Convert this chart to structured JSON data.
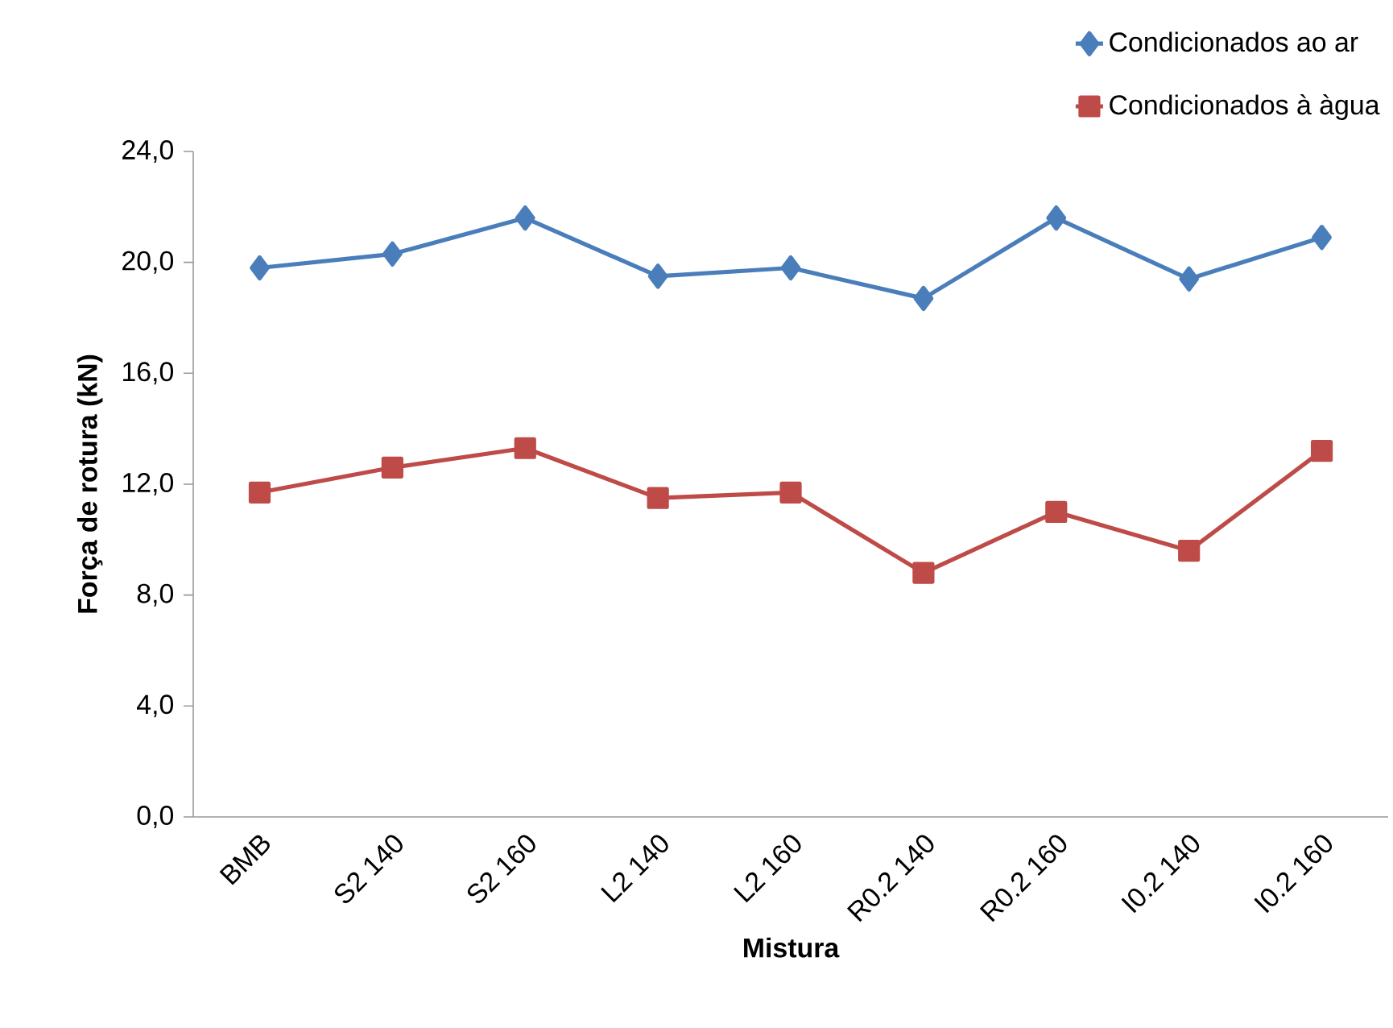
{
  "chart_data": {
    "type": "line",
    "xlabel": "Mistura",
    "ylabel": "Força de rotura (kN)",
    "categories": [
      "BMB",
      "S2 140",
      "S2 160",
      "L2 140",
      "L2 160",
      "R0.2 140",
      "R0.2 160",
      "I0.2 140",
      "I0.2 160"
    ],
    "series": [
      {
        "name": "Condicionados ao ar",
        "color": "#4a7ebb",
        "marker": "diamond",
        "values": [
          19.8,
          20.3,
          21.6,
          19.5,
          19.8,
          18.7,
          21.6,
          19.4,
          20.9
        ]
      },
      {
        "name": "Condicionados à àgua",
        "color": "#be4b48",
        "marker": "square",
        "values": [
          11.7,
          12.6,
          13.3,
          11.5,
          11.7,
          8.8,
          11.0,
          9.6,
          13.2
        ]
      }
    ],
    "ylim": [
      0,
      24
    ],
    "yticks": [
      {
        "value": 0,
        "label": "0,0"
      },
      {
        "value": 4,
        "label": "4,0"
      },
      {
        "value": 8,
        "label": "8,0"
      },
      {
        "value": 12,
        "label": "12,0"
      },
      {
        "value": 16,
        "label": "16,0"
      },
      {
        "value": 20,
        "label": "20,0"
      },
      {
        "value": 24,
        "label": "24,0"
      }
    ],
    "grid": false,
    "legend": "top right",
    "line_style": "solid"
  }
}
